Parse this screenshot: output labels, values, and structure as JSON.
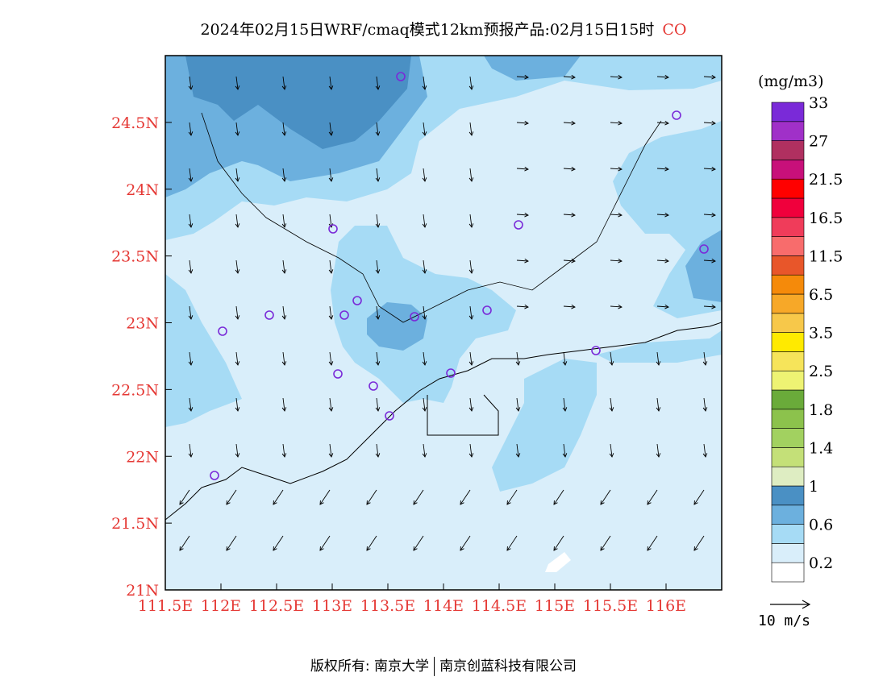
{
  "title": {
    "text": "2024年02月15日WRF/cmaq模式12km预报产品:02月15日15时",
    "species": "CO"
  },
  "colorbar": {
    "unit": "(mg/m3)",
    "colors": [
      "#ffffff",
      "#d9eefa",
      "#a6dbf5",
      "#6cb0de",
      "#4a90c4",
      "#deedc2",
      "#c4e078",
      "#a2d160",
      "#8cc24c",
      "#6aab3a",
      "#eef373",
      "#f6e45a",
      "#ffea00",
      "#f7c84a",
      "#f7a828",
      "#f58a0a",
      "#e8562a",
      "#f86c6c",
      "#f03c5a",
      "#f0003c",
      "#ff0000",
      "#c8107a",
      "#b03060",
      "#a030c8",
      "#7a2ad8"
    ],
    "labels": [
      "0.2",
      "0.6",
      "1",
      "1.4",
      "1.8",
      "2.5",
      "3.5",
      "6.5",
      "11.5",
      "16.5",
      "21.5",
      "27",
      "33"
    ]
  },
  "axes": {
    "x_ticks": [
      "111.5E",
      "112E",
      "112.5E",
      "113E",
      "113.5E",
      "114E",
      "114.5E",
      "115E",
      "115.5E",
      "116E"
    ],
    "y_ticks": [
      "21N",
      "21.5N",
      "22N",
      "22.5N",
      "23N",
      "23.5N",
      "24N",
      "24.5N"
    ],
    "x_range": [
      111.5,
      116.5
    ],
    "y_range": [
      21,
      25
    ]
  },
  "wind_scale": "10 m/s",
  "footer": {
    "left": "版权所有: 南京大学",
    "right": "南京创蓝科技有限公司"
  }
}
